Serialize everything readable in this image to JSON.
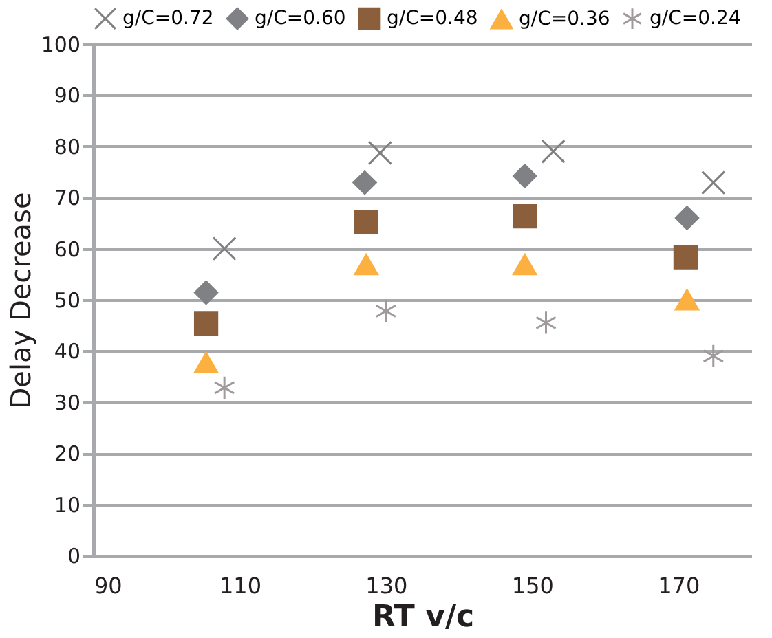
{
  "chart_data": {
    "type": "scatter",
    "xlabel": "RT v/c",
    "ylabel": "Delay Decrease",
    "xlim": [
      90,
      180
    ],
    "xticks": [
      90,
      110,
      130,
      150,
      170
    ],
    "ylim": [
      0,
      100
    ],
    "yticks": [
      0,
      10,
      20,
      30,
      40,
      50,
      60,
      70,
      80,
      90,
      100
    ],
    "grid": "y",
    "legend": "top",
    "series": [
      {
        "name": "g/C=0.72",
        "color": "#808080",
        "marker": "cross",
        "x": [
          107.9,
          129.2,
          152.9,
          174.8
        ],
        "values": [
          60.0,
          78.7,
          79.0,
          72.9
        ]
      },
      {
        "name": "g/C=0.60",
        "color": "#808184",
        "marker": "diamond",
        "x": [
          105.4,
          127.1,
          149.0,
          171.2
        ],
        "values": [
          51.4,
          72.9,
          74.2,
          66.0
        ]
      },
      {
        "name": "g/C=0.48",
        "color": "#8b5e3c",
        "marker": "square",
        "x": [
          105.4,
          127.3,
          149.0,
          171.0
        ],
        "values": [
          45.3,
          65.2,
          66.3,
          58.3
        ]
      },
      {
        "name": "g/C=0.36",
        "color": "#fbb040",
        "marker": "triangle",
        "x": [
          105.4,
          127.3,
          149.0,
          171.2
        ],
        "values": [
          37.7,
          56.9,
          56.9,
          50.0
        ]
      },
      {
        "name": "g/C=0.24",
        "color": "#a09a9c",
        "marker": "cross",
        "x": [
          107.9,
          130.0,
          151.9,
          174.8
        ],
        "values": [
          32.8,
          47.8,
          45.5,
          39.0
        ]
      }
    ]
  }
}
